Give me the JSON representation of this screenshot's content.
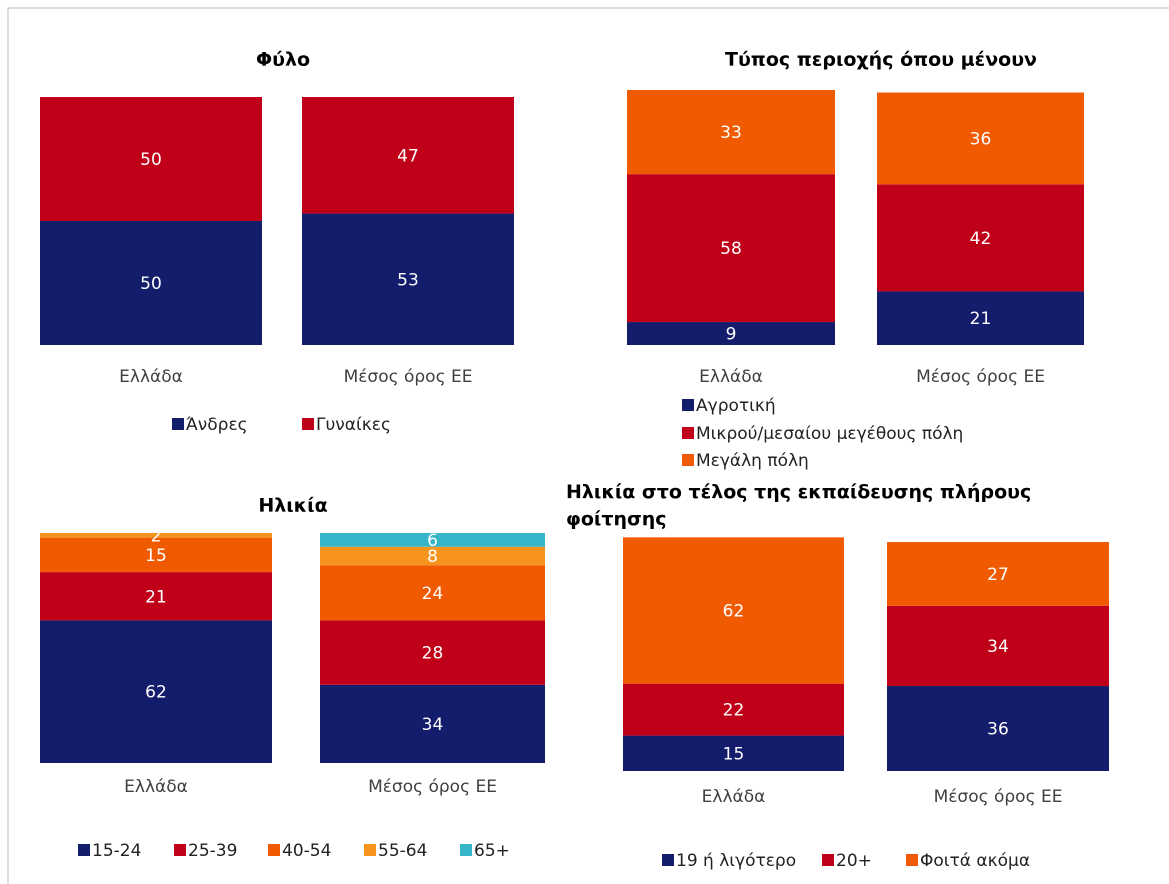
{
  "chart_data": [
    {
      "type": "bar",
      "stacked": true,
      "title": "Φύλο",
      "categories": [
        "Ελλάδα",
        "Μέσος όρος ΕΕ"
      ],
      "series": [
        {
          "name": "Άνδρες",
          "color": "#141c6c",
          "values": [
            50,
            53
          ]
        },
        {
          "name": "Γυναίκες",
          "color": "#c00018",
          "values": [
            50,
            47
          ]
        }
      ]
    },
    {
      "type": "bar",
      "stacked": true,
      "title": "Τύπος περιοχής όπου μένουν",
      "categories": [
        "Ελλάδα",
        "Μέσος όρος ΕΕ"
      ],
      "series": [
        {
          "name": "Αγροτική",
          "color": "#141c6c",
          "values": [
            9,
            21
          ]
        },
        {
          "name": "Μικρού/μεσαίου μεγέθους πόλη",
          "color": "#c00018",
          "values": [
            58,
            42
          ]
        },
        {
          "name": "Μεγάλη πόλη",
          "color": "#f05a00",
          "values": [
            33,
            36
          ]
        }
      ]
    },
    {
      "type": "bar",
      "stacked": true,
      "title": "Ηλικία",
      "categories": [
        "Ελλάδα",
        "Μέσος όρος ΕΕ"
      ],
      "series": [
        {
          "name": "15-24",
          "color": "#141c6c",
          "values": [
            62,
            34
          ]
        },
        {
          "name": "25-39",
          "color": "#c00018",
          "values": [
            21,
            28
          ]
        },
        {
          "name": "40-54",
          "color": "#f05a00",
          "values": [
            15,
            24
          ]
        },
        {
          "name": "55-64",
          "color": "#f7941d",
          "values": [
            2,
            8
          ]
        },
        {
          "name": "65+",
          "color": "#36b5c8",
          "values": [
            0,
            6
          ]
        }
      ]
    },
    {
      "type": "bar",
      "stacked": true,
      "title": "Ηλικία στο τέλος της εκπαίδευσης πλήρους φοίτησης",
      "categories": [
        "Ελλάδα",
        "Μέσος όρος ΕΕ"
      ],
      "series": [
        {
          "name": "19 ή λιγότερο",
          "color": "#141c6c",
          "values": [
            15,
            36
          ]
        },
        {
          "name": "20+",
          "color": "#c00018",
          "values": [
            22,
            34
          ]
        },
        {
          "name": "Φοιτά ακόμα",
          "color": "#f05a00",
          "values": [
            62,
            27
          ]
        }
      ]
    }
  ]
}
